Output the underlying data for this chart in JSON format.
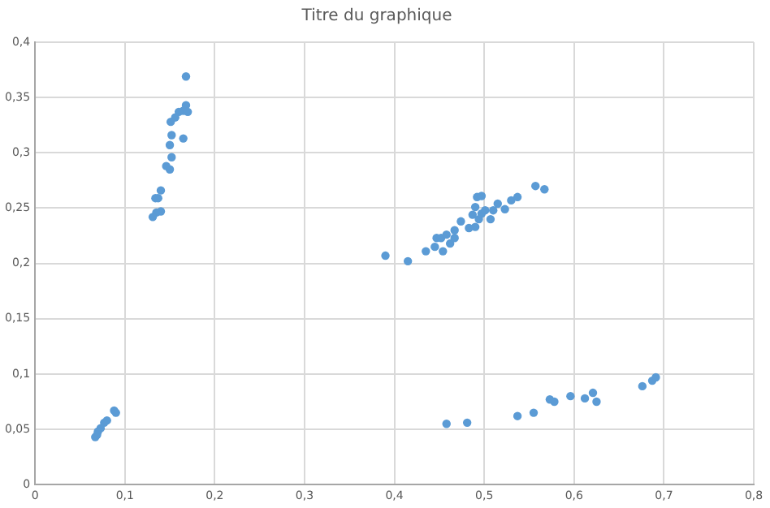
{
  "chart_data": {
    "type": "scatter",
    "title": "Titre du graphique",
    "marker": "circle",
    "grid": true,
    "legend": false,
    "xlim": [
      0,
      0.8
    ],
    "ylim": [
      0,
      0.4
    ],
    "xticks": [
      0,
      {
        "value": 0.1,
        "label": "0,1"
      },
      {
        "value": 0.2,
        "label": "0,2"
      },
      {
        "value": 0.3,
        "label": "0,3"
      },
      {
        "value": 0.4,
        "label": "0,4"
      },
      {
        "value": 0.5,
        "label": "0,5"
      },
      {
        "value": 0.6,
        "label": "0,6"
      },
      {
        "value": 0.7,
        "label": "0,7"
      },
      {
        "value": 0.8,
        "label": "0,8"
      }
    ],
    "yticks": [
      0,
      {
        "value": 0.05,
        "label": "0,05"
      },
      {
        "value": 0.1,
        "label": "0,1"
      },
      {
        "value": 0.15,
        "label": "0,15"
      },
      {
        "value": 0.2,
        "label": "0,2"
      },
      {
        "value": 0.25,
        "label": "0,25"
      },
      {
        "value": 0.3,
        "label": "0,3"
      },
      {
        "value": 0.35,
        "label": "0,35"
      },
      {
        "value": 0.4,
        "label": "0,4"
      }
    ],
    "series": [
      {
        "color": "#5b9bd5",
        "x": [
          0.168,
          0.168,
          0.165,
          0.16,
          0.17,
          0.156,
          0.151,
          0.152,
          0.165,
          0.15,
          0.152,
          0.146,
          0.15,
          0.14,
          0.134,
          0.137,
          0.14,
          0.135,
          0.131,
          0.088,
          0.09,
          0.08,
          0.077,
          0.073,
          0.07,
          0.067,
          0.069,
          0.39,
          0.415,
          0.435,
          0.445,
          0.447,
          0.452,
          0.458,
          0.454,
          0.462,
          0.467,
          0.467,
          0.474,
          0.483,
          0.487,
          0.49,
          0.492,
          0.497,
          0.494,
          0.497,
          0.501,
          0.507,
          0.51,
          0.515,
          0.523,
          0.53,
          0.537,
          0.557,
          0.567,
          0.49,
          0.458,
          0.481,
          0.537,
          0.555,
          0.573,
          0.578,
          0.596,
          0.612,
          0.621,
          0.625,
          0.676,
          0.687,
          0.691
        ],
        "values": [
          0.369,
          0.343,
          0.338,
          0.337,
          0.337,
          0.332,
          0.328,
          0.316,
          0.313,
          0.307,
          0.296,
          0.288,
          0.285,
          0.266,
          0.259,
          0.259,
          0.247,
          0.246,
          0.242,
          0.067,
          0.065,
          0.058,
          0.056,
          0.051,
          0.048,
          0.043,
          0.045,
          0.207,
          0.202,
          0.211,
          0.215,
          0.223,
          0.223,
          0.226,
          0.211,
          0.218,
          0.223,
          0.23,
          0.238,
          0.232,
          0.244,
          0.251,
          0.26,
          0.261,
          0.24,
          0.245,
          0.248,
          0.24,
          0.248,
          0.254,
          0.249,
          0.257,
          0.26,
          0.27,
          0.267,
          0.233,
          0.055,
          0.056,
          0.062,
          0.065,
          0.077,
          0.075,
          0.08,
          0.078,
          0.083,
          0.075,
          0.089,
          0.094,
          0.097
        ]
      }
    ]
  }
}
